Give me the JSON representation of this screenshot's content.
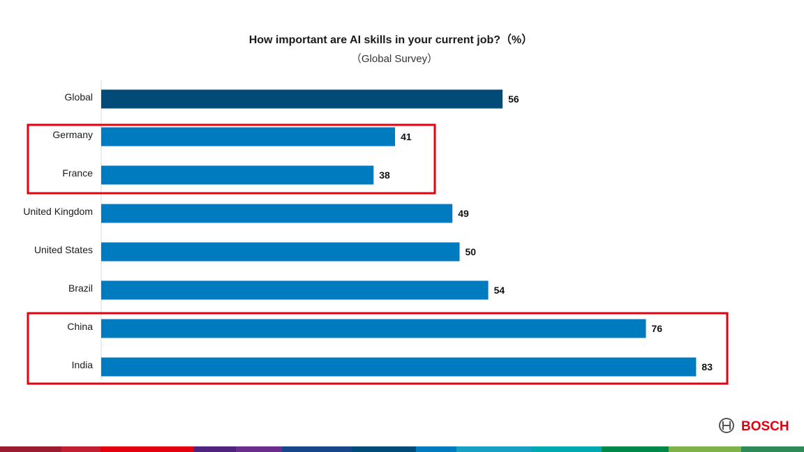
{
  "chart_data": {
    "type": "bar",
    "orientation": "horizontal",
    "title": "How important are AI skills in your current job?（%）",
    "subtitle": "（Global Survey）",
    "categories": [
      "Global",
      "Germany",
      "France",
      "United Kingdom",
      "United States",
      "Brazil",
      "China",
      "India"
    ],
    "values": [
      56,
      41,
      38,
      49,
      50,
      54,
      76,
      83
    ],
    "value_labels": [
      "56",
      "41",
      "38",
      "49",
      "50",
      "54",
      "76",
      "83"
    ],
    "bar_colors": [
      "#004b78",
      "#007bc0",
      "#007bc0",
      "#007bc0",
      "#007bc0",
      "#007bc0",
      "#007bc0",
      "#007bc0"
    ],
    "xlim": [
      0,
      100
    ],
    "grid": false,
    "highlight_groups": [
      [
        "Germany",
        "France"
      ],
      [
        "China",
        "India"
      ]
    ],
    "highlight_color": "#e3000f"
  },
  "brand": {
    "name": "BOSCH",
    "color": "#e3000f",
    "icon": "bosch-armature-icon"
  },
  "footer_stripe_colors": [
    "#9b1b30",
    "#c22032",
    "#e3000f",
    "#50237f",
    "#6a2d8c",
    "#18468b",
    "#004b78",
    "#007bc0",
    "#18a0c4",
    "#00a8b0",
    "#00884a",
    "#7fb349",
    "#2e8b57"
  ]
}
